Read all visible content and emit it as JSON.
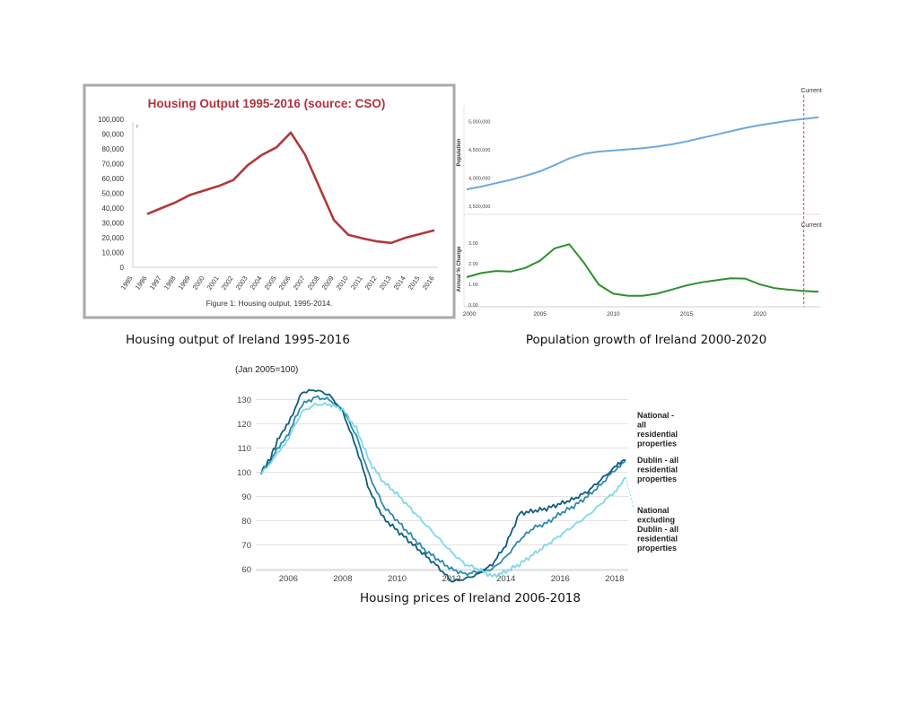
{
  "chart_data": [
    {
      "type": "line",
      "title": "Housing Output 1995-2016 (source: CSO)",
      "footnote": "Figure 1: Housing output, 1995-2014.",
      "caption": "Housing output of Ireland 1995-2016",
      "legend_marker": "r",
      "categories": [
        "1995",
        "1996",
        "1997",
        "1998",
        "1999",
        "2000",
        "2001",
        "2002",
        "2003",
        "2004",
        "2005",
        "2006",
        "2007",
        "2008",
        "2009",
        "2010",
        "2011",
        "2012",
        "2013",
        "2014",
        "2015",
        "2016"
      ],
      "yticks": [
        "0",
        "10,000",
        "20,000",
        "30,000",
        "40,000",
        "50,000",
        "60,000",
        "70,000",
        "80,000",
        "90,000",
        "100,000"
      ],
      "ylim": [
        0,
        100000
      ],
      "series": [
        {
          "values": [
            null,
            36000,
            40000,
            44000,
            49000,
            52000,
            55000,
            59000,
            69000,
            76000,
            81000,
            91000,
            76000,
            54000,
            32000,
            22000,
            19500,
            17500,
            16500,
            20000,
            22500,
            25000
          ]
        }
      ],
      "colors": {
        "line": "#b03a3a",
        "title": "#b2333f",
        "frame": "#a9a9a9"
      },
      "grid": false
    },
    {
      "type": "line",
      "caption": "Population growth of Ireland 2000-2020",
      "marker_label": "Current",
      "marker_x": 2023,
      "xticks": [
        "2000",
        "2005",
        "2010",
        "2015",
        "2020"
      ],
      "xlim": [
        2000,
        2024
      ],
      "top": {
        "ylabel": "Population",
        "yticks": [
          "3,500,000",
          "4,000,000",
          "4,500,000",
          "5,000,000"
        ],
        "ylim": [
          3500000,
          5250000
        ],
        "x": [
          2000,
          2001,
          2002,
          2003,
          2004,
          2005,
          2006,
          2007,
          2008,
          2009,
          2010,
          2011,
          2012,
          2013,
          2014,
          2015,
          2016,
          2017,
          2018,
          2019,
          2020,
          2021,
          2022,
          2023,
          2024
        ],
        "values": [
          3800000,
          3850000,
          3910000,
          3970000,
          4040000,
          4120000,
          4230000,
          4350000,
          4430000,
          4470000,
          4490000,
          4510000,
          4530000,
          4560000,
          4600000,
          4650000,
          4710000,
          4770000,
          4830000,
          4890000,
          4940000,
          4980000,
          5020000,
          5050000,
          5080000
        ]
      },
      "bottom": {
        "ylabel": "Annual % Change",
        "yticks": [
          "0.00",
          "1.00",
          "2.00",
          "3.00"
        ],
        "ylim": [
          0,
          3.4
        ],
        "x": [
          2000,
          2001,
          2002,
          2003,
          2004,
          2005,
          2006,
          2007,
          2008,
          2009,
          2010,
          2011,
          2012,
          2013,
          2014,
          2015,
          2016,
          2017,
          2018,
          2019,
          2020,
          2021,
          2022,
          2023,
          2024
        ],
        "values": [
          1.35,
          1.55,
          1.65,
          1.62,
          1.8,
          2.15,
          2.75,
          2.95,
          2.05,
          1.0,
          0.55,
          0.45,
          0.45,
          0.55,
          0.75,
          0.95,
          1.1,
          1.2,
          1.3,
          1.28,
          1.0,
          0.82,
          0.74,
          0.68,
          0.64
        ]
      },
      "colors": {
        "top": "#6fa8dc",
        "bottom": "#2f8f2f",
        "marker": "#c0504d"
      }
    },
    {
      "type": "line",
      "ylabel": "(Jan 2005=100)",
      "caption": "Housing prices of Ireland 2006-2018",
      "xticks": [
        "2006",
        "2008",
        "2010",
        "2012",
        "2014",
        "2016",
        "2018"
      ],
      "xlim": [
        2004.8,
        2018.5
      ],
      "yticks": [
        "60",
        "70",
        "80",
        "90",
        "100",
        "110",
        "120",
        "130"
      ],
      "ylim": [
        55,
        135
      ],
      "grid": true,
      "series": [
        {
          "name": "National - all residential properties",
          "color": "#2d8bab",
          "x": [
            2005,
            2005.3,
            2005.6,
            2006,
            2006.5,
            2007,
            2007.5,
            2008,
            2008.5,
            2009,
            2009.5,
            2010,
            2010.5,
            2011,
            2011.5,
            2012,
            2012.5,
            2013,
            2013.5,
            2014,
            2014.5,
            2015,
            2015.5,
            2016,
            2016.5,
            2017,
            2017.5,
            2018,
            2018.4
          ],
          "values": [
            100,
            104,
            110,
            116,
            128,
            131,
            130,
            126,
            115,
            98,
            86,
            80,
            74,
            68,
            64,
            60,
            58,
            59,
            60,
            65,
            72,
            77,
            79,
            83,
            86,
            90,
            95,
            101,
            105
          ]
        },
        {
          "name": "Dublin - all residential properties",
          "color": "#115e7d",
          "x": [
            2005,
            2005.3,
            2005.6,
            2006,
            2006.5,
            2007,
            2007.5,
            2008,
            2008.5,
            2009,
            2009.5,
            2010,
            2010.5,
            2011,
            2011.5,
            2012,
            2012.5,
            2013,
            2013.5,
            2014,
            2014.5,
            2015,
            2015.5,
            2016,
            2016.5,
            2017,
            2017.5,
            2018,
            2018.4
          ],
          "values": [
            100,
            105,
            113,
            120,
            133,
            134,
            132,
            125,
            110,
            92,
            81,
            76,
            71,
            66,
            61,
            55,
            56,
            58,
            62,
            70,
            83,
            84,
            85,
            87,
            89,
            92,
            97,
            102,
            105
          ]
        },
        {
          "name": "National excluding Dublin - all residential properties",
          "color": "#7fd8e8",
          "x": [
            2005,
            2005.3,
            2005.6,
            2006,
            2006.5,
            2007,
            2007.5,
            2008,
            2008.5,
            2009,
            2009.5,
            2010,
            2010.5,
            2011,
            2011.5,
            2012,
            2012.5,
            2013,
            2013.5,
            2014,
            2014.5,
            2015,
            2015.5,
            2016,
            2016.5,
            2017,
            2017.5,
            2018,
            2018.4
          ],
          "values": [
            100,
            103,
            108,
            114,
            125,
            128,
            128,
            126,
            118,
            104,
            96,
            91,
            85,
            79,
            73,
            67,
            62,
            60,
            57,
            59,
            62,
            66,
            70,
            74,
            78,
            82,
            87,
            92,
            98
          ]
        }
      ],
      "legend": {
        "national": [
          "National -",
          "all",
          "residential",
          "properties"
        ],
        "dublin": [
          "Dublin - all",
          "residential",
          "properties"
        ],
        "ex_dublin": [
          "National",
          "excluding",
          "Dublin - all",
          "residential",
          "properties"
        ]
      }
    }
  ]
}
